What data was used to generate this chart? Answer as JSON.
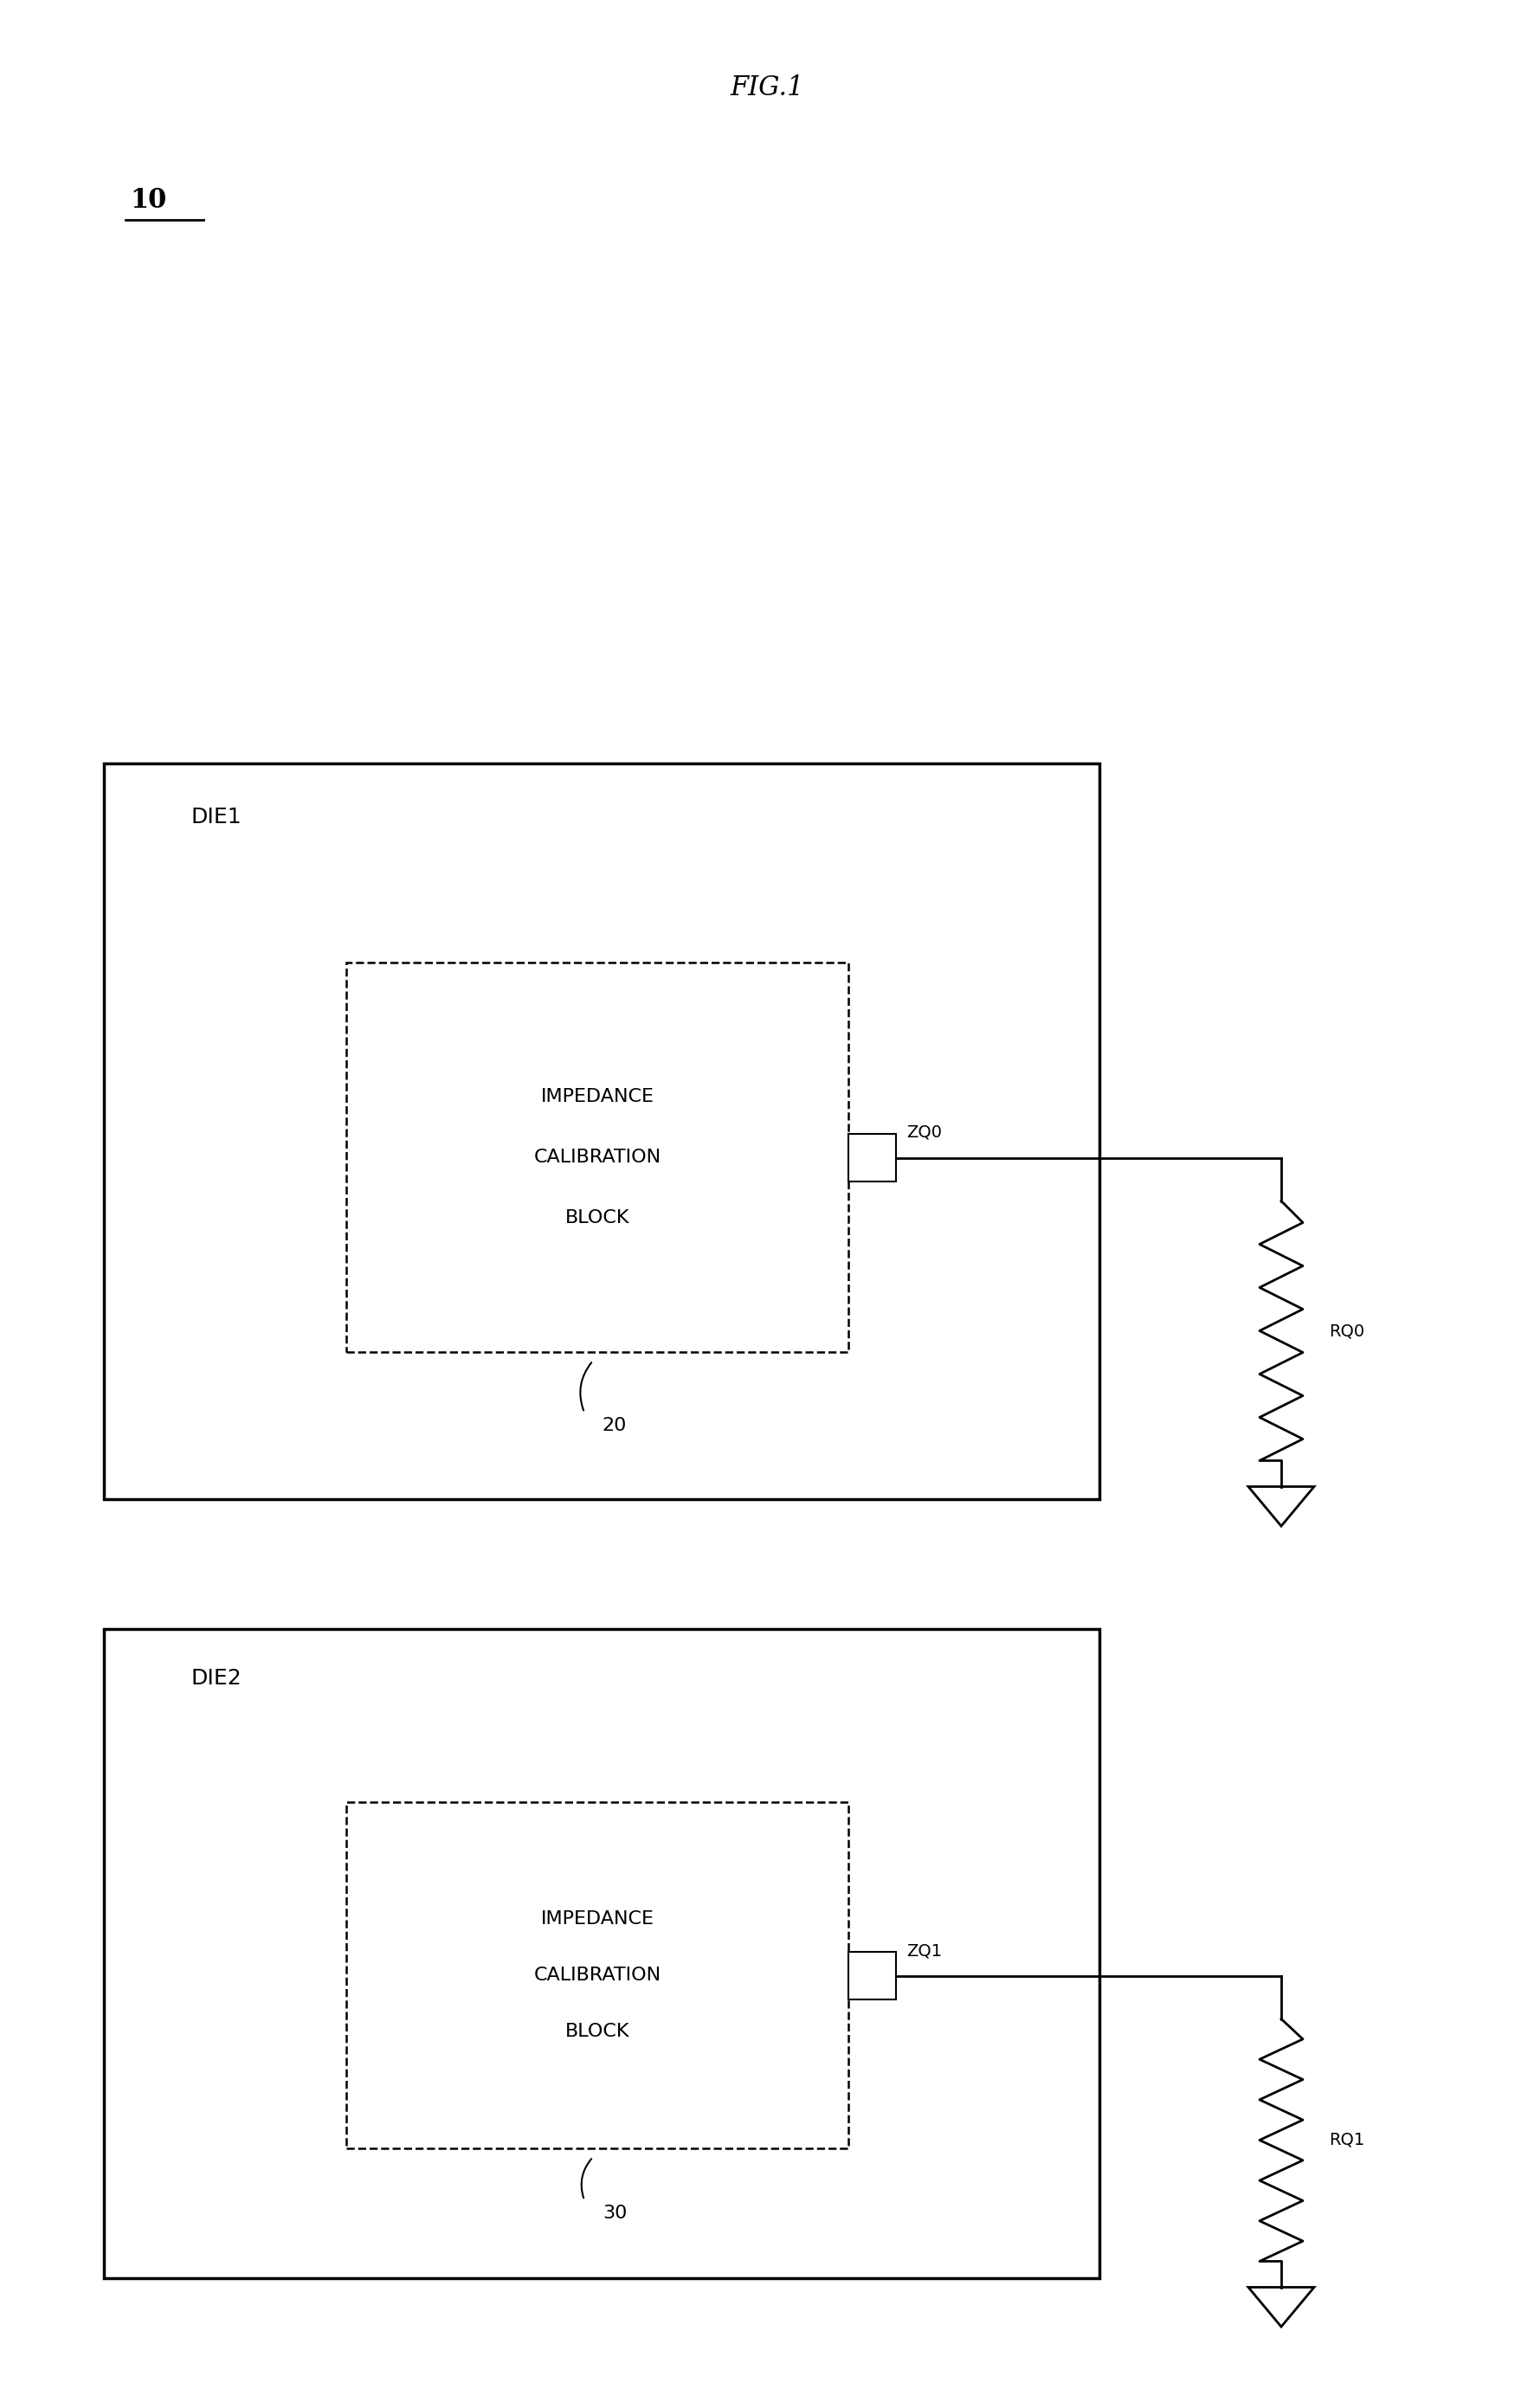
{
  "title": "FIG.1",
  "label_10": "10",
  "bg_color": "#ffffff",
  "line_color": "#000000",
  "die1_label": "DIE1",
  "die2_label": "DIE2",
  "block1_label": [
    "IMPEDANCE",
    "CALIBRATION",
    "BLOCK"
  ],
  "block2_label": [
    "IMPEDANCE",
    "CALIBRATION",
    "BLOCK"
  ],
  "block1_ref": "20",
  "block2_ref": "30",
  "zq0_label": "ZQ0",
  "zq1_label": "ZQ1",
  "rq0_label": "RQ0",
  "rq1_label": "RQ1",
  "title_fontsize": 22,
  "label_fontsize": 18,
  "block_fontsize": 16,
  "ref_fontsize": 16
}
